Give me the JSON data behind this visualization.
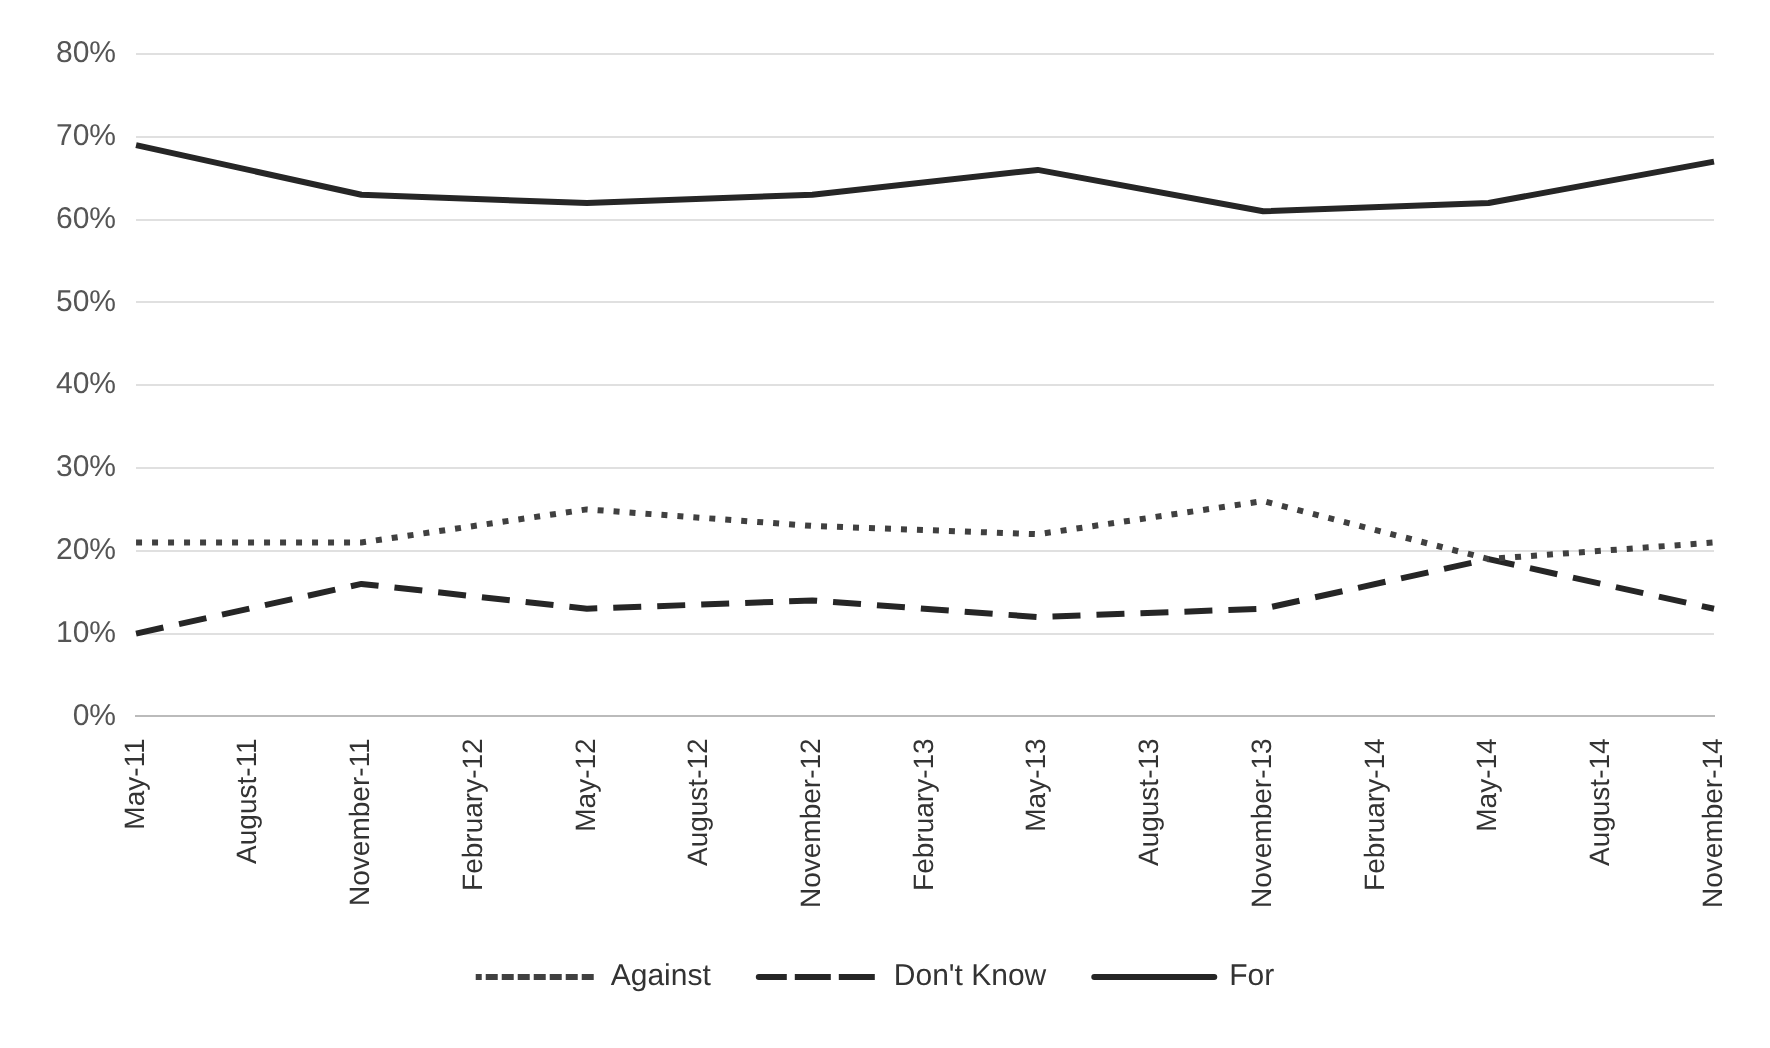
{
  "chart_data": {
    "type": "line",
    "categories": [
      "May-11",
      "August-11",
      "November-11",
      "February-12",
      "May-12",
      "August-12",
      "November-12",
      "February-13",
      "May-13",
      "August-13",
      "November-13",
      "February-14",
      "May-14",
      "August-14",
      "November-14"
    ],
    "series": [
      {
        "name": "Against",
        "color": "#404040",
        "line_style": "dotted",
        "values": [
          21,
          null,
          21,
          null,
          25,
          null,
          23,
          null,
          22,
          null,
          26,
          null,
          19,
          null,
          21
        ]
      },
      {
        "name": "Don't Know",
        "color": "#262626",
        "line_style": "dashed",
        "values": [
          10,
          null,
          16,
          null,
          13,
          null,
          14,
          null,
          12,
          null,
          13,
          null,
          19,
          null,
          13
        ]
      },
      {
        "name": "For",
        "color": "#262626",
        "line_style": "solid",
        "values": [
          69,
          null,
          63,
          null,
          62,
          null,
          63,
          null,
          66,
          null,
          61,
          null,
          62,
          null,
          67
        ]
      }
    ],
    "ylim": [
      0,
      80
    ],
    "yticks": [
      {
        "value": 0,
        "label": "0%"
      },
      {
        "value": 10,
        "label": "10%"
      },
      {
        "value": 20,
        "label": "20%"
      },
      {
        "value": 30,
        "label": "30%"
      },
      {
        "value": 40,
        "label": "40%"
      },
      {
        "value": 50,
        "label": "50%"
      },
      {
        "value": 60,
        "label": "60%"
      },
      {
        "value": 70,
        "label": "70%"
      },
      {
        "value": 80,
        "label": "80%"
      }
    ],
    "grid": "y",
    "legend": "bottom",
    "marker": "none"
  }
}
